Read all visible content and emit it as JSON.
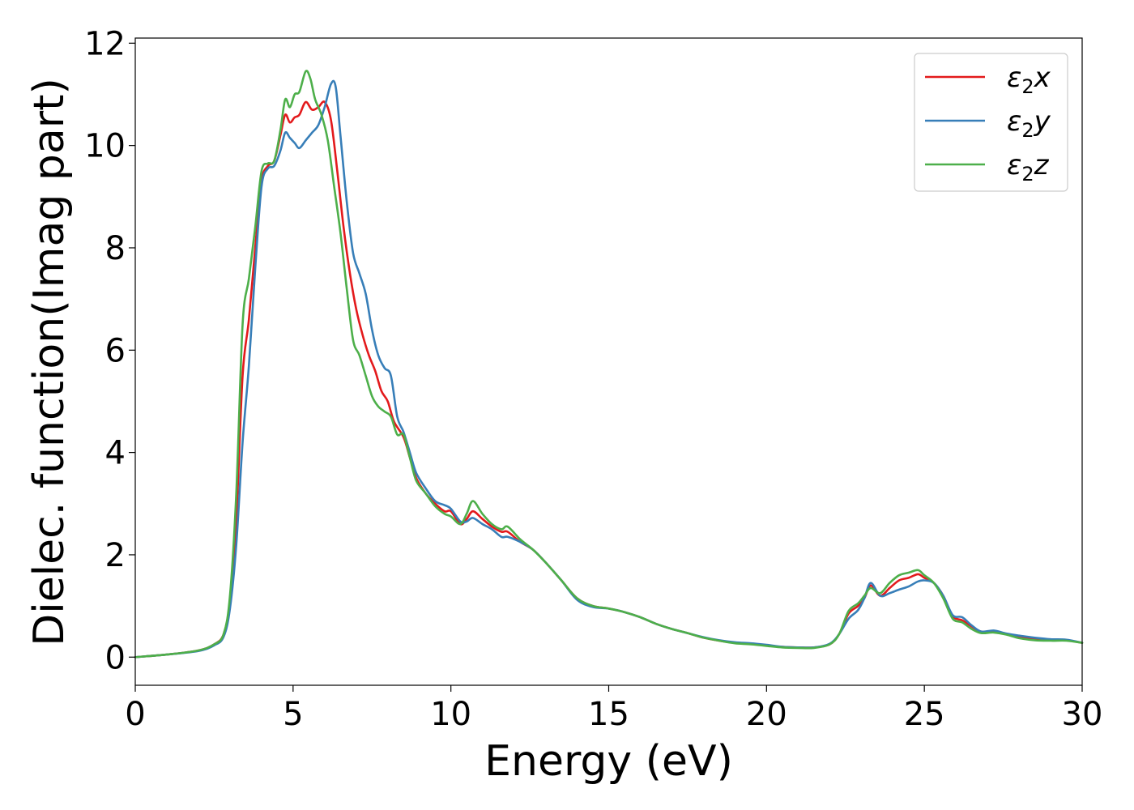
{
  "chart_data": {
    "type": "line",
    "title": "",
    "xlabel": "Energy (eV)",
    "ylabel": "Dielec. function(Imag part)",
    "xlim": [
      0,
      30
    ],
    "ylim": [
      -0.55,
      12.1
    ],
    "xticks": [
      0,
      5,
      10,
      15,
      20,
      25,
      30
    ],
    "yticks": [
      0,
      2,
      4,
      6,
      8,
      10,
      12
    ],
    "grid": false,
    "legend_position": "top-right",
    "series": [
      {
        "name": "ε2x",
        "legend_base": "ε",
        "legend_sub": "2",
        "legend_axis": "x",
        "color": "#e31a1c",
        "points": [
          [
            0,
            0
          ],
          [
            1,
            0.05
          ],
          [
            2,
            0.13
          ],
          [
            2.5,
            0.25
          ],
          [
            2.8,
            0.45
          ],
          [
            3.0,
            1.1
          ],
          [
            3.2,
            2.7
          ],
          [
            3.4,
            5.5
          ],
          [
            3.6,
            6.6
          ],
          [
            3.8,
            8.0
          ],
          [
            4.0,
            9.3
          ],
          [
            4.2,
            9.6
          ],
          [
            4.4,
            9.7
          ],
          [
            4.6,
            10.2
          ],
          [
            4.75,
            10.6
          ],
          [
            4.9,
            10.45
          ],
          [
            5.05,
            10.55
          ],
          [
            5.2,
            10.6
          ],
          [
            5.4,
            10.85
          ],
          [
            5.6,
            10.7
          ],
          [
            5.8,
            10.75
          ],
          [
            6.0,
            10.85
          ],
          [
            6.2,
            10.5
          ],
          [
            6.4,
            9.5
          ],
          [
            6.6,
            8.4
          ],
          [
            6.8,
            7.5
          ],
          [
            7.0,
            6.8
          ],
          [
            7.2,
            6.3
          ],
          [
            7.4,
            5.9
          ],
          [
            7.6,
            5.6
          ],
          [
            7.8,
            5.2
          ],
          [
            8.0,
            5.0
          ],
          [
            8.2,
            4.6
          ],
          [
            8.5,
            4.3
          ],
          [
            8.7,
            3.9
          ],
          [
            8.9,
            3.5
          ],
          [
            9.2,
            3.2
          ],
          [
            9.5,
            3.0
          ],
          [
            9.8,
            2.85
          ],
          [
            10.0,
            2.85
          ],
          [
            10.3,
            2.6
          ],
          [
            10.5,
            2.7
          ],
          [
            10.7,
            2.85
          ],
          [
            11.0,
            2.7
          ],
          [
            11.3,
            2.55
          ],
          [
            11.6,
            2.45
          ],
          [
            11.8,
            2.45
          ],
          [
            12.2,
            2.25
          ],
          [
            12.6,
            2.1
          ],
          [
            13.0,
            1.85
          ],
          [
            13.5,
            1.5
          ],
          [
            14.0,
            1.15
          ],
          [
            14.5,
            1.0
          ],
          [
            15.0,
            0.95
          ],
          [
            15.5,
            0.88
          ],
          [
            16.0,
            0.78
          ],
          [
            16.5,
            0.65
          ],
          [
            17.0,
            0.55
          ],
          [
            17.5,
            0.47
          ],
          [
            18.0,
            0.38
          ],
          [
            18.5,
            0.32
          ],
          [
            19.0,
            0.28
          ],
          [
            19.5,
            0.26
          ],
          [
            20.0,
            0.23
          ],
          [
            20.5,
            0.2
          ],
          [
            21.0,
            0.19
          ],
          [
            21.5,
            0.19
          ],
          [
            22.0,
            0.25
          ],
          [
            22.3,
            0.45
          ],
          [
            22.6,
            0.85
          ],
          [
            22.9,
            1.0
          ],
          [
            23.1,
            1.15
          ],
          [
            23.3,
            1.4
          ],
          [
            23.6,
            1.2
          ],
          [
            23.9,
            1.35
          ],
          [
            24.2,
            1.5
          ],
          [
            24.5,
            1.55
          ],
          [
            24.8,
            1.62
          ],
          [
            25.0,
            1.55
          ],
          [
            25.3,
            1.45
          ],
          [
            25.6,
            1.2
          ],
          [
            25.9,
            0.8
          ],
          [
            26.2,
            0.72
          ],
          [
            26.5,
            0.6
          ],
          [
            26.8,
            0.5
          ],
          [
            27.2,
            0.5
          ],
          [
            27.6,
            0.45
          ],
          [
            28.0,
            0.4
          ],
          [
            28.5,
            0.35
          ],
          [
            29.0,
            0.33
          ],
          [
            29.5,
            0.33
          ],
          [
            30.0,
            0.28
          ]
        ]
      },
      {
        "name": "ε2y",
        "legend_base": "ε",
        "legend_sub": "2",
        "legend_axis": "y",
        "color": "#377eb8",
        "points": [
          [
            0,
            0
          ],
          [
            1,
            0.05
          ],
          [
            2,
            0.12
          ],
          [
            2.5,
            0.23
          ],
          [
            2.8,
            0.4
          ],
          [
            3.0,
            0.95
          ],
          [
            3.2,
            2.2
          ],
          [
            3.4,
            4.2
          ],
          [
            3.6,
            5.7
          ],
          [
            3.8,
            7.6
          ],
          [
            4.0,
            9.2
          ],
          [
            4.2,
            9.55
          ],
          [
            4.4,
            9.6
          ],
          [
            4.6,
            9.9
          ],
          [
            4.75,
            10.25
          ],
          [
            4.9,
            10.15
          ],
          [
            5.05,
            10.05
          ],
          [
            5.2,
            9.95
          ],
          [
            5.4,
            10.1
          ],
          [
            5.6,
            10.25
          ],
          [
            5.8,
            10.4
          ],
          [
            6.0,
            10.75
          ],
          [
            6.2,
            11.2
          ],
          [
            6.35,
            11.15
          ],
          [
            6.5,
            10.2
          ],
          [
            6.7,
            8.9
          ],
          [
            6.9,
            7.9
          ],
          [
            7.1,
            7.5
          ],
          [
            7.3,
            7.1
          ],
          [
            7.5,
            6.4
          ],
          [
            7.7,
            5.9
          ],
          [
            7.9,
            5.65
          ],
          [
            8.1,
            5.5
          ],
          [
            8.3,
            4.7
          ],
          [
            8.5,
            4.4
          ],
          [
            8.7,
            4.0
          ],
          [
            8.9,
            3.6
          ],
          [
            9.2,
            3.3
          ],
          [
            9.5,
            3.05
          ],
          [
            9.8,
            2.97
          ],
          [
            10.0,
            2.9
          ],
          [
            10.3,
            2.65
          ],
          [
            10.5,
            2.65
          ],
          [
            10.7,
            2.72
          ],
          [
            11.0,
            2.6
          ],
          [
            11.3,
            2.5
          ],
          [
            11.6,
            2.35
          ],
          [
            11.8,
            2.35
          ],
          [
            12.2,
            2.25
          ],
          [
            12.6,
            2.1
          ],
          [
            13.0,
            1.85
          ],
          [
            13.5,
            1.5
          ],
          [
            14.0,
            1.12
          ],
          [
            14.5,
            0.98
          ],
          [
            15.0,
            0.95
          ],
          [
            15.5,
            0.88
          ],
          [
            16.0,
            0.78
          ],
          [
            16.5,
            0.65
          ],
          [
            17.0,
            0.55
          ],
          [
            17.5,
            0.47
          ],
          [
            18.0,
            0.39
          ],
          [
            18.5,
            0.33
          ],
          [
            19.0,
            0.29
          ],
          [
            19.5,
            0.27
          ],
          [
            20.0,
            0.24
          ],
          [
            20.5,
            0.2
          ],
          [
            21.0,
            0.19
          ],
          [
            21.5,
            0.19
          ],
          [
            22.0,
            0.26
          ],
          [
            22.3,
            0.45
          ],
          [
            22.6,
            0.75
          ],
          [
            22.9,
            0.92
          ],
          [
            23.1,
            1.15
          ],
          [
            23.3,
            1.45
          ],
          [
            23.6,
            1.2
          ],
          [
            23.9,
            1.25
          ],
          [
            24.2,
            1.32
          ],
          [
            24.5,
            1.38
          ],
          [
            24.8,
            1.48
          ],
          [
            25.0,
            1.5
          ],
          [
            25.3,
            1.45
          ],
          [
            25.6,
            1.2
          ],
          [
            25.9,
            0.82
          ],
          [
            26.2,
            0.78
          ],
          [
            26.5,
            0.62
          ],
          [
            26.8,
            0.5
          ],
          [
            27.2,
            0.52
          ],
          [
            27.6,
            0.46
          ],
          [
            28.0,
            0.42
          ],
          [
            28.5,
            0.38
          ],
          [
            29.0,
            0.35
          ],
          [
            29.5,
            0.34
          ],
          [
            30.0,
            0.28
          ]
        ]
      },
      {
        "name": "ε2z",
        "legend_base": "ε",
        "legend_sub": "2",
        "legend_axis": "z",
        "color": "#4daf4a",
        "points": [
          [
            0,
            0
          ],
          [
            1,
            0.05
          ],
          [
            2,
            0.13
          ],
          [
            2.5,
            0.25
          ],
          [
            2.8,
            0.45
          ],
          [
            3.0,
            1.2
          ],
          [
            3.2,
            3.2
          ],
          [
            3.4,
            6.5
          ],
          [
            3.6,
            7.4
          ],
          [
            3.8,
            8.4
          ],
          [
            4.0,
            9.5
          ],
          [
            4.2,
            9.65
          ],
          [
            4.4,
            9.7
          ],
          [
            4.6,
            10.3
          ],
          [
            4.75,
            10.9
          ],
          [
            4.9,
            10.75
          ],
          [
            5.05,
            11.0
          ],
          [
            5.2,
            11.05
          ],
          [
            5.4,
            11.45
          ],
          [
            5.55,
            11.3
          ],
          [
            5.7,
            10.9
          ],
          [
            5.9,
            10.6
          ],
          [
            6.1,
            10.1
          ],
          [
            6.3,
            9.2
          ],
          [
            6.5,
            8.3
          ],
          [
            6.7,
            7.2
          ],
          [
            6.9,
            6.2
          ],
          [
            7.1,
            5.9
          ],
          [
            7.3,
            5.5
          ],
          [
            7.5,
            5.1
          ],
          [
            7.7,
            4.9
          ],
          [
            7.9,
            4.8
          ],
          [
            8.1,
            4.7
          ],
          [
            8.3,
            4.35
          ],
          [
            8.5,
            4.35
          ],
          [
            8.7,
            3.9
          ],
          [
            8.9,
            3.45
          ],
          [
            9.2,
            3.2
          ],
          [
            9.5,
            2.95
          ],
          [
            9.8,
            2.8
          ],
          [
            10.0,
            2.75
          ],
          [
            10.3,
            2.6
          ],
          [
            10.5,
            2.8
          ],
          [
            10.7,
            3.05
          ],
          [
            11.0,
            2.8
          ],
          [
            11.3,
            2.6
          ],
          [
            11.6,
            2.5
          ],
          [
            11.8,
            2.55
          ],
          [
            12.2,
            2.3
          ],
          [
            12.6,
            2.1
          ],
          [
            13.0,
            1.85
          ],
          [
            13.5,
            1.5
          ],
          [
            14.0,
            1.15
          ],
          [
            14.5,
            1.0
          ],
          [
            15.0,
            0.95
          ],
          [
            15.5,
            0.88
          ],
          [
            16.0,
            0.78
          ],
          [
            16.5,
            0.65
          ],
          [
            17.0,
            0.55
          ],
          [
            17.5,
            0.47
          ],
          [
            18.0,
            0.38
          ],
          [
            18.5,
            0.32
          ],
          [
            19.0,
            0.27
          ],
          [
            19.5,
            0.25
          ],
          [
            20.0,
            0.22
          ],
          [
            20.5,
            0.19
          ],
          [
            21.0,
            0.18
          ],
          [
            21.5,
            0.18
          ],
          [
            22.0,
            0.25
          ],
          [
            22.3,
            0.45
          ],
          [
            22.6,
            0.9
          ],
          [
            22.9,
            1.05
          ],
          [
            23.1,
            1.2
          ],
          [
            23.3,
            1.35
          ],
          [
            23.6,
            1.25
          ],
          [
            23.9,
            1.45
          ],
          [
            24.2,
            1.6
          ],
          [
            24.5,
            1.65
          ],
          [
            24.8,
            1.7
          ],
          [
            25.0,
            1.6
          ],
          [
            25.3,
            1.45
          ],
          [
            25.6,
            1.15
          ],
          [
            25.9,
            0.75
          ],
          [
            26.2,
            0.68
          ],
          [
            26.5,
            0.55
          ],
          [
            26.8,
            0.47
          ],
          [
            27.2,
            0.48
          ],
          [
            27.6,
            0.44
          ],
          [
            28.0,
            0.37
          ],
          [
            28.5,
            0.33
          ],
          [
            29.0,
            0.32
          ],
          [
            29.5,
            0.32
          ],
          [
            30.0,
            0.28
          ]
        ]
      }
    ]
  }
}
